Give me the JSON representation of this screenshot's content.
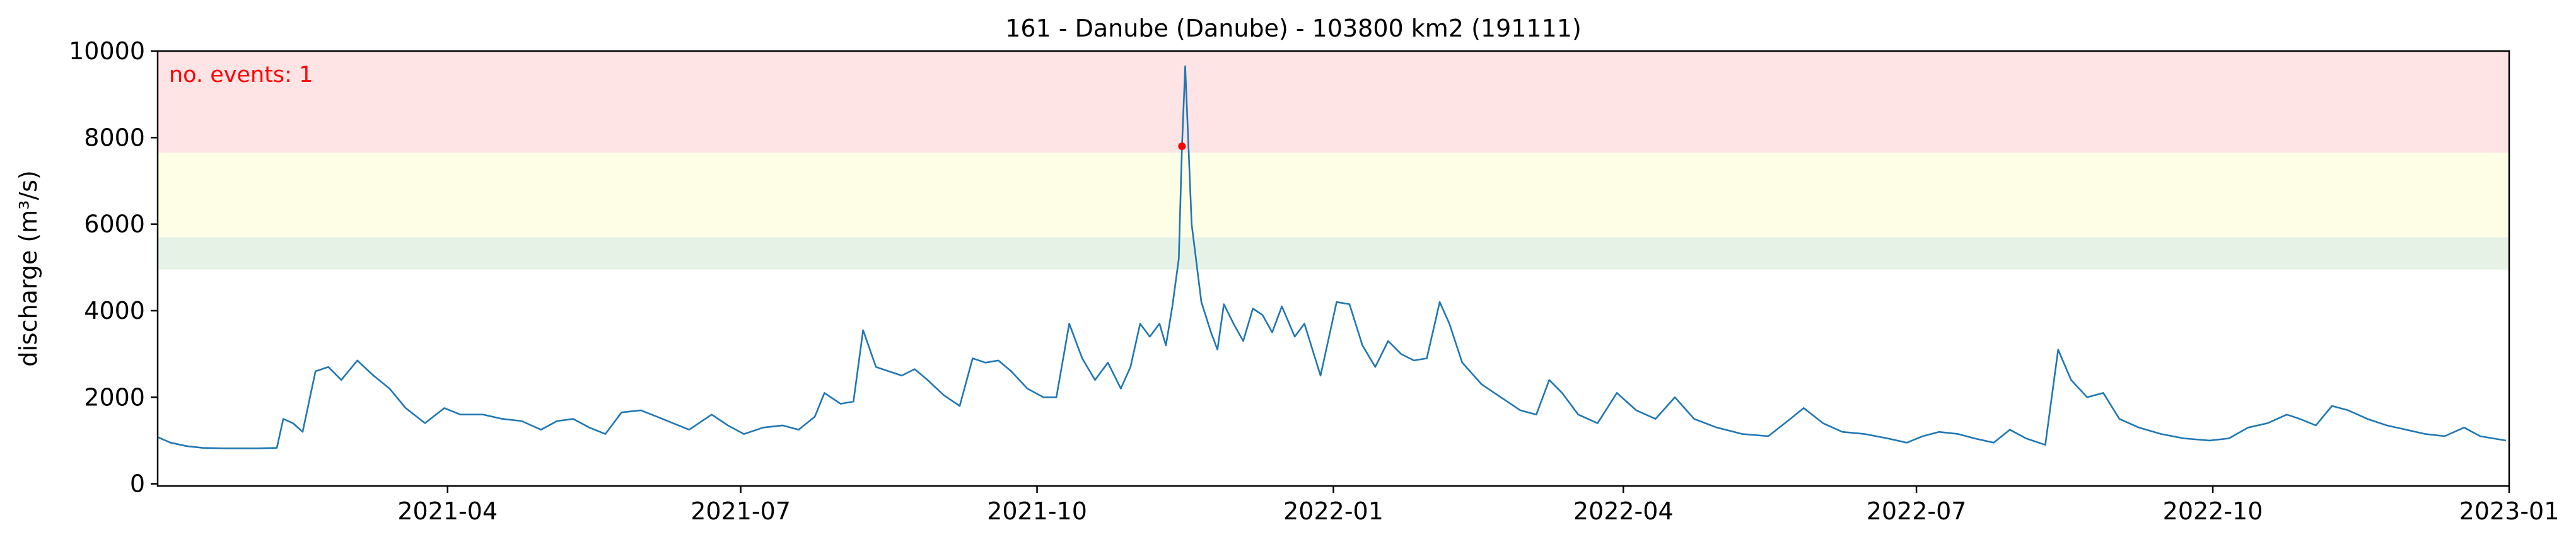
{
  "chart_data": {
    "type": "line",
    "title": "161 - Danube (Danube) - 103800 km2 (191111)",
    "xlabel": "",
    "ylabel": "discharge (m³/s)",
    "xlim": [
      "2021-01-01",
      "2023-01-01"
    ],
    "ylim": [
      -50,
      10000
    ],
    "x_ticks": [
      "2021-04-01",
      "2021-07-01",
      "2021-10-01",
      "2022-01-01",
      "2022-04-01",
      "2022-07-01",
      "2022-10-01",
      "2023-01-01"
    ],
    "x_tick_labels": [
      "2021-04",
      "2021-07",
      "2021-10",
      "2022-01",
      "2022-04",
      "2022-07",
      "2022-10",
      "2023-01"
    ],
    "y_ticks": [
      0,
      2000,
      4000,
      6000,
      8000,
      10000
    ],
    "y_tick_labels": [
      "0",
      "2000",
      "4000",
      "6000",
      "8000",
      "10000"
    ],
    "grid": false,
    "threshold_bands": [
      {
        "from": 4950,
        "to": 5700,
        "color": "#e6f2e6"
      },
      {
        "from": 5700,
        "to": 7650,
        "color": "#fefee6"
      },
      {
        "from": 7650,
        "to": 10000,
        "color": "#ffe4e6"
      }
    ],
    "series": [
      {
        "color": "#1f77b4",
        "points": [
          [
            "2021-01-01",
            1080
          ],
          [
            "2021-01-05",
            950
          ],
          [
            "2021-01-10",
            870
          ],
          [
            "2021-01-15",
            830
          ],
          [
            "2021-01-22",
            820
          ],
          [
            "2021-02-01",
            820
          ],
          [
            "2021-02-07",
            830
          ],
          [
            "2021-02-09",
            1500
          ],
          [
            "2021-02-12",
            1400
          ],
          [
            "2021-02-15",
            1200
          ],
          [
            "2021-02-19",
            2600
          ],
          [
            "2021-02-23",
            2700
          ],
          [
            "2021-02-27",
            2400
          ],
          [
            "2021-03-04",
            2850
          ],
          [
            "2021-03-09",
            2500
          ],
          [
            "2021-03-14",
            2200
          ],
          [
            "2021-03-19",
            1750
          ],
          [
            "2021-03-25",
            1400
          ],
          [
            "2021-03-31",
            1750
          ],
          [
            "2021-04-05",
            1600
          ],
          [
            "2021-04-12",
            1600
          ],
          [
            "2021-04-18",
            1500
          ],
          [
            "2021-04-24",
            1450
          ],
          [
            "2021-04-30",
            1250
          ],
          [
            "2021-05-05",
            1450
          ],
          [
            "2021-05-10",
            1500
          ],
          [
            "2021-05-15",
            1300
          ],
          [
            "2021-05-20",
            1150
          ],
          [
            "2021-05-25",
            1650
          ],
          [
            "2021-05-31",
            1700
          ],
          [
            "2021-06-05",
            1550
          ],
          [
            "2021-06-10",
            1400
          ],
          [
            "2021-06-15",
            1250
          ],
          [
            "2021-06-22",
            1600
          ],
          [
            "2021-06-27",
            1350
          ],
          [
            "2021-07-02",
            1150
          ],
          [
            "2021-07-08",
            1300
          ],
          [
            "2021-07-14",
            1350
          ],
          [
            "2021-07-19",
            1250
          ],
          [
            "2021-07-24",
            1550
          ],
          [
            "2021-07-27",
            2100
          ],
          [
            "2021-08-01",
            1850
          ],
          [
            "2021-08-05",
            1900
          ],
          [
            "2021-08-08",
            3550
          ],
          [
            "2021-08-12",
            2700
          ],
          [
            "2021-08-16",
            2600
          ],
          [
            "2021-08-20",
            2500
          ],
          [
            "2021-08-24",
            2650
          ],
          [
            "2021-08-28",
            2400
          ],
          [
            "2021-09-02",
            2050
          ],
          [
            "2021-09-07",
            1800
          ],
          [
            "2021-09-11",
            2900
          ],
          [
            "2021-09-15",
            2800
          ],
          [
            "2021-09-19",
            2850
          ],
          [
            "2021-09-23",
            2600
          ],
          [
            "2021-09-28",
            2200
          ],
          [
            "2021-10-03",
            2000
          ],
          [
            "2021-10-07",
            2000
          ],
          [
            "2021-10-11",
            3700
          ],
          [
            "2021-10-15",
            2900
          ],
          [
            "2021-10-19",
            2400
          ],
          [
            "2021-10-23",
            2800
          ],
          [
            "2021-10-27",
            2200
          ],
          [
            "2021-10-30",
            2700
          ],
          [
            "2021-11-02",
            3700
          ],
          [
            "2021-11-05",
            3400
          ],
          [
            "2021-11-08",
            3700
          ],
          [
            "2021-11-10",
            3200
          ],
          [
            "2021-11-12",
            4100
          ],
          [
            "2021-11-14",
            5200
          ],
          [
            "2021-11-15",
            7800
          ],
          [
            "2021-11-16",
            9650
          ],
          [
            "2021-11-18",
            6000
          ],
          [
            "2021-11-21",
            4200
          ],
          [
            "2021-11-24",
            3500
          ],
          [
            "2021-11-26",
            3100
          ],
          [
            "2021-11-28",
            4150
          ],
          [
            "2021-12-01",
            3700
          ],
          [
            "2021-12-04",
            3300
          ],
          [
            "2021-12-07",
            4050
          ],
          [
            "2021-12-10",
            3900
          ],
          [
            "2021-12-13",
            3500
          ],
          [
            "2021-12-16",
            4100
          ],
          [
            "2021-12-20",
            3400
          ],
          [
            "2021-12-23",
            3700
          ],
          [
            "2021-12-28",
            2500
          ],
          [
            "2022-01-02",
            4200
          ],
          [
            "2022-01-06",
            4150
          ],
          [
            "2022-01-10",
            3200
          ],
          [
            "2022-01-14",
            2700
          ],
          [
            "2022-01-18",
            3300
          ],
          [
            "2022-01-22",
            3000
          ],
          [
            "2022-01-26",
            2850
          ],
          [
            "2022-01-30",
            2900
          ],
          [
            "2022-02-03",
            4200
          ],
          [
            "2022-02-06",
            3700
          ],
          [
            "2022-02-10",
            2800
          ],
          [
            "2022-02-16",
            2300
          ],
          [
            "2022-02-22",
            2000
          ],
          [
            "2022-02-28",
            1700
          ],
          [
            "2022-03-05",
            1600
          ],
          [
            "2022-03-09",
            2400
          ],
          [
            "2022-03-13",
            2100
          ],
          [
            "2022-03-18",
            1600
          ],
          [
            "2022-03-24",
            1400
          ],
          [
            "2022-03-30",
            2100
          ],
          [
            "2022-04-05",
            1700
          ],
          [
            "2022-04-11",
            1500
          ],
          [
            "2022-04-17",
            2000
          ],
          [
            "2022-04-23",
            1500
          ],
          [
            "2022-04-30",
            1300
          ],
          [
            "2022-05-08",
            1150
          ],
          [
            "2022-05-16",
            1100
          ],
          [
            "2022-05-22",
            1450
          ],
          [
            "2022-05-27",
            1750
          ],
          [
            "2022-06-02",
            1400
          ],
          [
            "2022-06-08",
            1200
          ],
          [
            "2022-06-15",
            1150
          ],
          [
            "2022-06-22",
            1050
          ],
          [
            "2022-06-28",
            950
          ],
          [
            "2022-07-03",
            1100
          ],
          [
            "2022-07-08",
            1200
          ],
          [
            "2022-07-14",
            1150
          ],
          [
            "2022-07-19",
            1050
          ],
          [
            "2022-07-25",
            950
          ],
          [
            "2022-07-30",
            1250
          ],
          [
            "2022-08-04",
            1050
          ],
          [
            "2022-08-10",
            900
          ],
          [
            "2022-08-14",
            3100
          ],
          [
            "2022-08-18",
            2400
          ],
          [
            "2022-08-23",
            2000
          ],
          [
            "2022-08-28",
            2100
          ],
          [
            "2022-09-02",
            1500
          ],
          [
            "2022-09-08",
            1300
          ],
          [
            "2022-09-15",
            1150
          ],
          [
            "2022-09-22",
            1050
          ],
          [
            "2022-09-30",
            1000
          ],
          [
            "2022-10-06",
            1050
          ],
          [
            "2022-10-12",
            1300
          ],
          [
            "2022-10-18",
            1400
          ],
          [
            "2022-10-24",
            1600
          ],
          [
            "2022-10-28",
            1500
          ],
          [
            "2022-11-02",
            1350
          ],
          [
            "2022-11-07",
            1800
          ],
          [
            "2022-11-12",
            1700
          ],
          [
            "2022-11-18",
            1500
          ],
          [
            "2022-11-24",
            1350
          ],
          [
            "2022-11-30",
            1250
          ],
          [
            "2022-12-06",
            1150
          ],
          [
            "2022-12-12",
            1100
          ],
          [
            "2022-12-18",
            1300
          ],
          [
            "2022-12-23",
            1100
          ],
          [
            "2022-12-27",
            1050
          ],
          [
            "2022-12-31",
            1000
          ]
        ]
      }
    ],
    "event_marker": {
      "x": "2021-11-15",
      "y": 7800,
      "color": "#ff0000"
    },
    "annotation": {
      "text": "no. events: 1",
      "position": "top-left",
      "color": "#ff0000"
    }
  }
}
